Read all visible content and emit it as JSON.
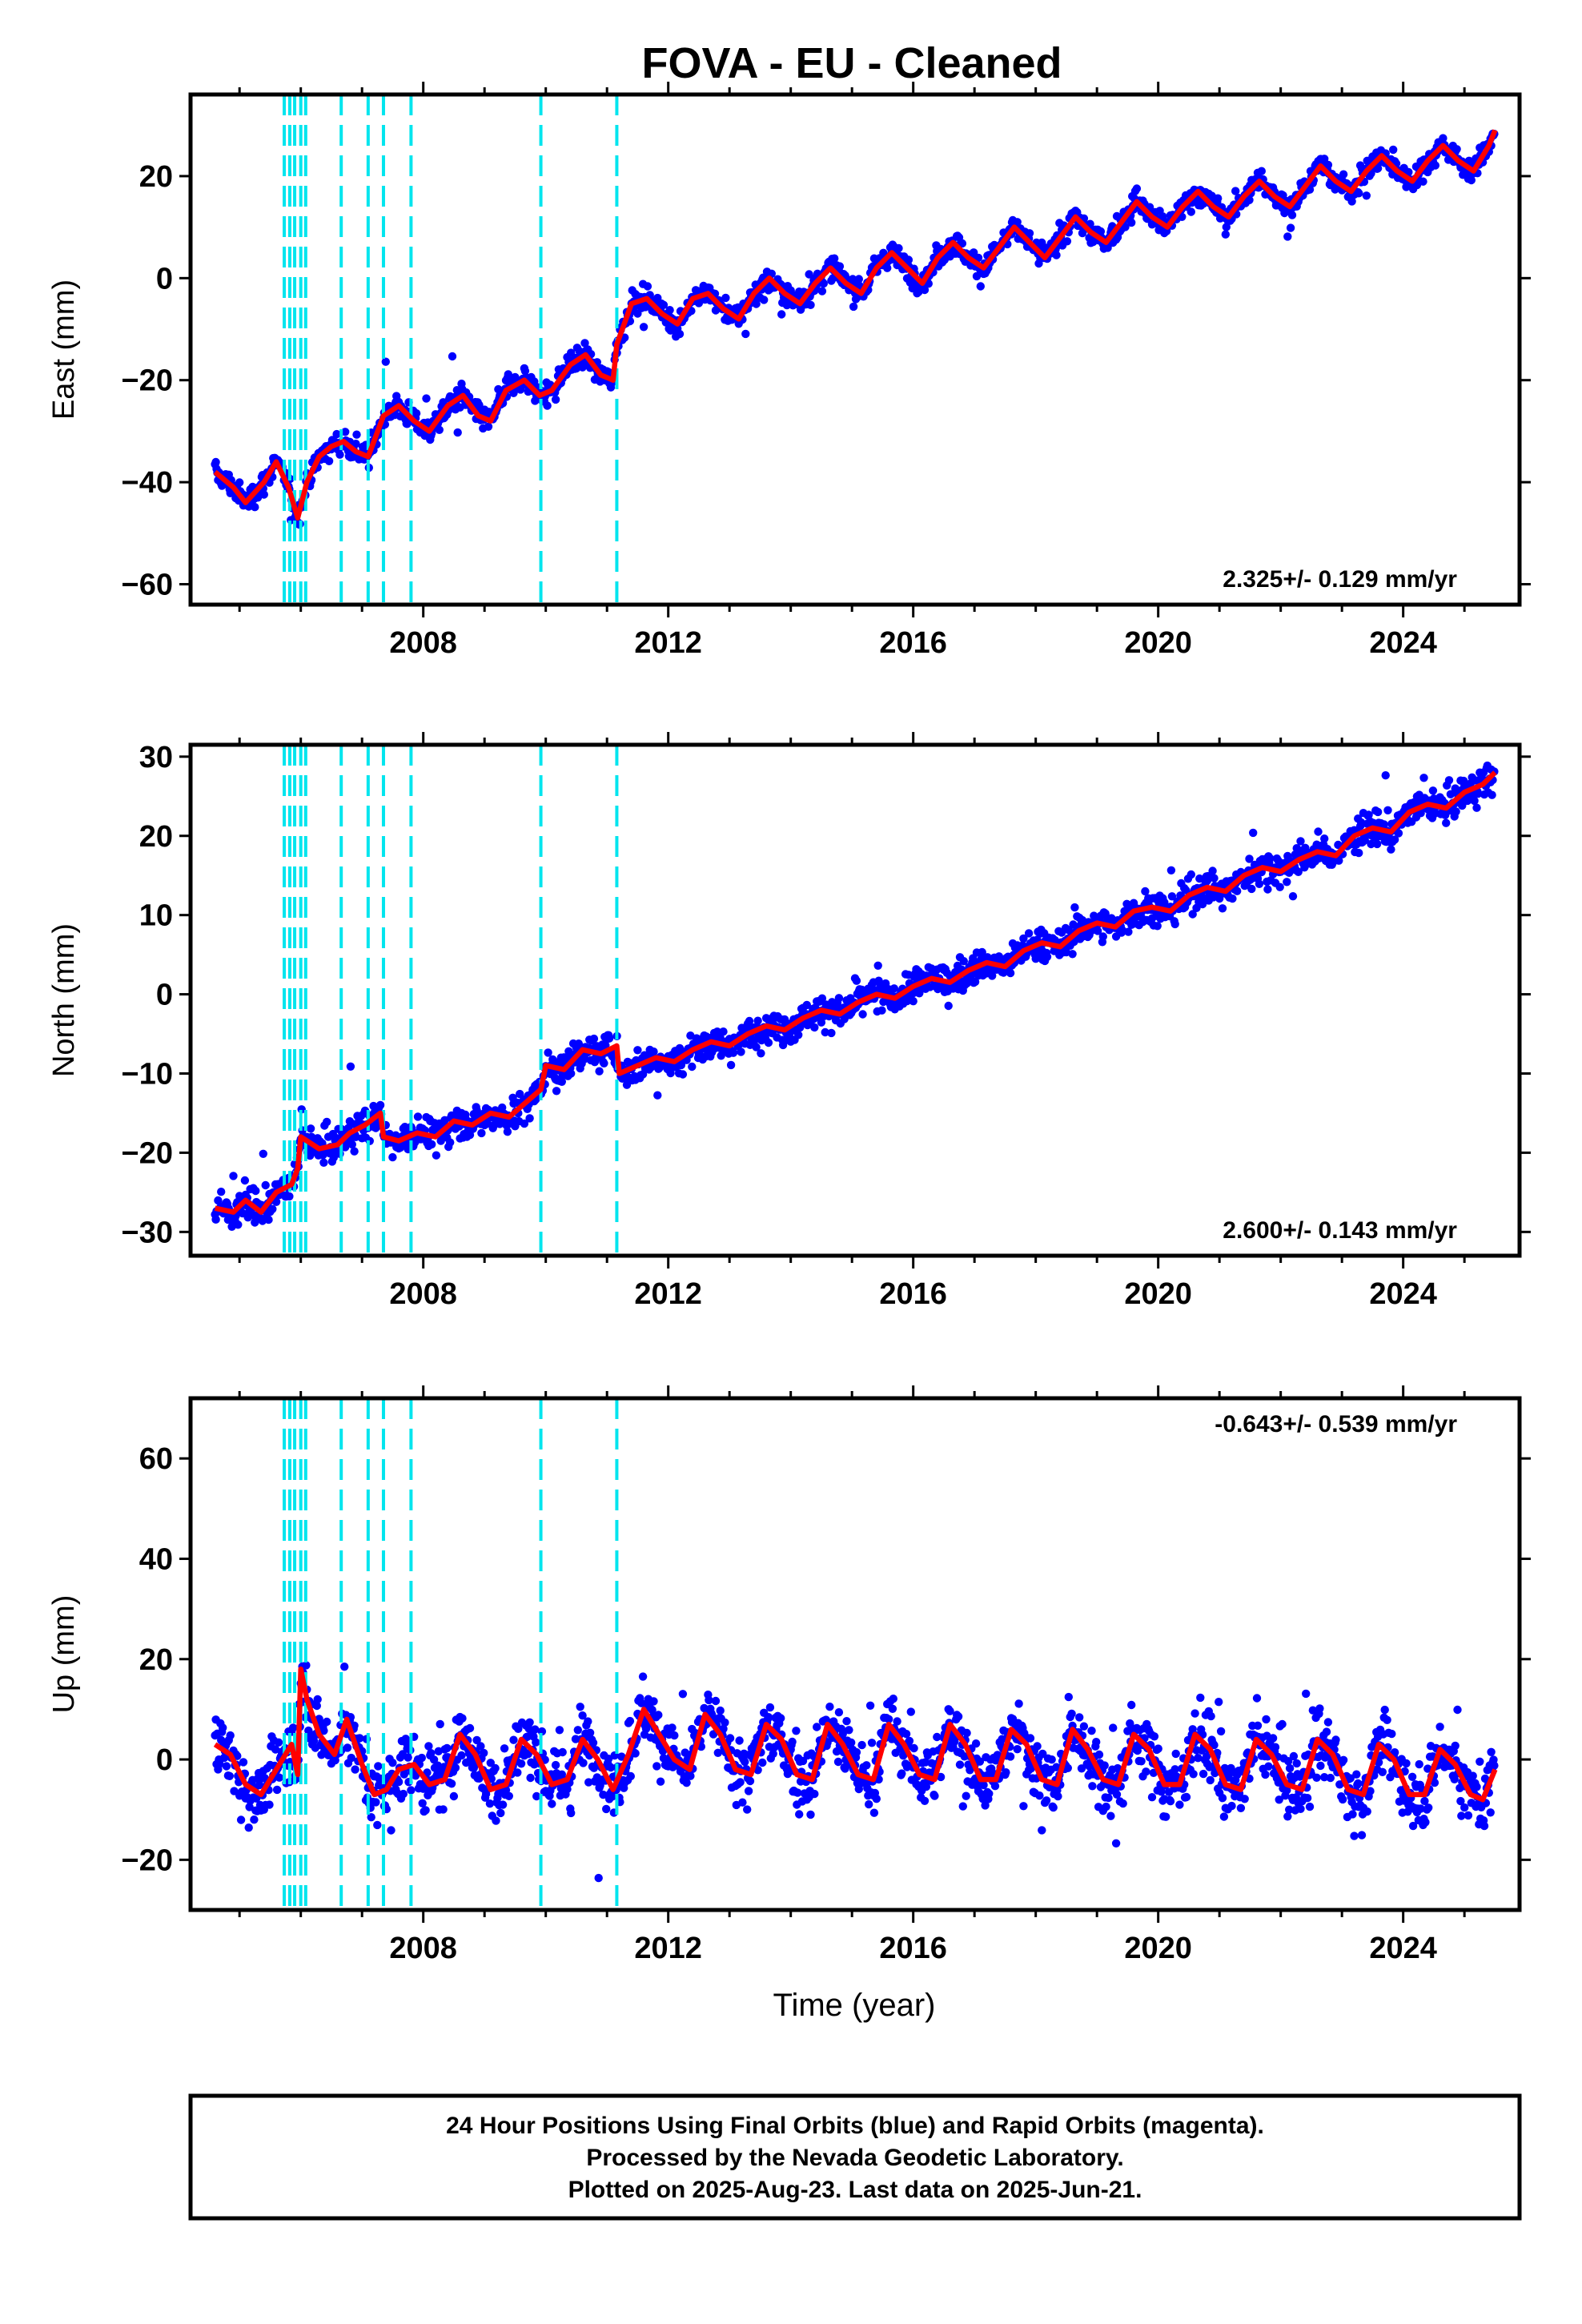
{
  "title": "FOVA  - EU - Cleaned",
  "xlabel": "Time (year)",
  "footer": {
    "line1": "24 Hour Positions Using Final Orbits (blue) and Rapid Orbits (magenta).",
    "line2": "Processed by the Nevada Geodetic Laboratory.",
    "line3": "Plotted on 2025-Aug-23. Last data on 2025-Jun-21."
  },
  "colors": {
    "data": "#0000ff",
    "model": "#ff0000",
    "offsets": "#00e5ee",
    "frame": "#000000"
  },
  "chart_data": [
    {
      "type": "scatter",
      "component": "east",
      "ylabel": "East (mm)",
      "rate_text": "2.325+/- 0.129 mm/yr",
      "xlim": [
        2004.2,
        2025.9
      ],
      "ylim": [
        -64,
        36
      ],
      "xticks": [
        2008,
        2012,
        2016,
        2020,
        2024
      ],
      "yticks": [
        -60,
        -40,
        -20,
        0,
        20
      ],
      "offset_lines": [
        2005.73,
        2005.82,
        2005.9,
        2006.0,
        2006.08,
        2006.66,
        2007.1,
        2007.35,
        2007.8,
        2009.92,
        2011.16
      ],
      "model_fit": [
        [
          2004.6,
          -38
        ],
        [
          2004.9,
          -41
        ],
        [
          2005.1,
          -44
        ],
        [
          2005.4,
          -40
        ],
        [
          2005.6,
          -36
        ],
        [
          2005.8,
          -41
        ],
        [
          2005.95,
          -47
        ],
        [
          2006.1,
          -40
        ],
        [
          2006.3,
          -35
        ],
        [
          2006.5,
          -33
        ],
        [
          2006.7,
          -32
        ],
        [
          2006.9,
          -34
        ],
        [
          2007.1,
          -35
        ],
        [
          2007.35,
          -27
        ],
        [
          2007.6,
          -25
        ],
        [
          2007.85,
          -28
        ],
        [
          2008.1,
          -30
        ],
        [
          2008.4,
          -25
        ],
        [
          2008.65,
          -23
        ],
        [
          2008.9,
          -27
        ],
        [
          2009.1,
          -28
        ],
        [
          2009.35,
          -22
        ],
        [
          2009.65,
          -20
        ],
        [
          2009.9,
          -23
        ],
        [
          2010.1,
          -22
        ],
        [
          2010.4,
          -17
        ],
        [
          2010.65,
          -15
        ],
        [
          2010.9,
          -19
        ],
        [
          2011.1,
          -20
        ],
        [
          2011.16,
          -13
        ],
        [
          2011.4,
          -5
        ],
        [
          2011.65,
          -4
        ],
        [
          2011.9,
          -7
        ],
        [
          2012.15,
          -9
        ],
        [
          2012.4,
          -4
        ],
        [
          2012.65,
          -3
        ],
        [
          2012.9,
          -6
        ],
        [
          2013.15,
          -8
        ],
        [
          2013.4,
          -3
        ],
        [
          2013.65,
          0
        ],
        [
          2013.9,
          -3
        ],
        [
          2014.15,
          -5
        ],
        [
          2014.4,
          -1
        ],
        [
          2014.65,
          2
        ],
        [
          2014.9,
          -1
        ],
        [
          2015.15,
          -3
        ],
        [
          2015.4,
          2
        ],
        [
          2015.65,
          5
        ],
        [
          2015.9,
          2
        ],
        [
          2016.15,
          -1
        ],
        [
          2016.4,
          4
        ],
        [
          2016.65,
          7
        ],
        [
          2016.9,
          4
        ],
        [
          2017.15,
          2
        ],
        [
          2017.4,
          6
        ],
        [
          2017.65,
          10
        ],
        [
          2017.9,
          7
        ],
        [
          2018.15,
          4
        ],
        [
          2018.4,
          8
        ],
        [
          2018.65,
          12
        ],
        [
          2018.9,
          9
        ],
        [
          2019.15,
          7
        ],
        [
          2019.4,
          11
        ],
        [
          2019.65,
          15
        ],
        [
          2019.9,
          12
        ],
        [
          2020.15,
          10
        ],
        [
          2020.4,
          14
        ],
        [
          2020.65,
          17
        ],
        [
          2020.9,
          14
        ],
        [
          2021.15,
          12
        ],
        [
          2021.4,
          16
        ],
        [
          2021.65,
          19
        ],
        [
          2021.9,
          16
        ],
        [
          2022.15,
          14
        ],
        [
          2022.4,
          18
        ],
        [
          2022.65,
          22
        ],
        [
          2022.9,
          19
        ],
        [
          2023.15,
          17
        ],
        [
          2023.4,
          21
        ],
        [
          2023.65,
          24
        ],
        [
          2023.9,
          21
        ],
        [
          2024.15,
          19
        ],
        [
          2024.4,
          23
        ],
        [
          2024.65,
          26
        ],
        [
          2024.9,
          23
        ],
        [
          2025.15,
          21
        ],
        [
          2025.4,
          26
        ],
        [
          2025.5,
          29
        ]
      ]
    },
    {
      "type": "scatter",
      "component": "north",
      "ylabel": "North (mm)",
      "rate_text": "2.600+/- 0.143 mm/yr",
      "xlim": [
        2004.2,
        2025.9
      ],
      "ylim": [
        -33,
        31.5
      ],
      "xticks": [
        2008,
        2012,
        2016,
        2020,
        2024
      ],
      "yticks": [
        -30,
        -20,
        -10,
        0,
        10,
        20,
        30
      ],
      "offset_lines": [
        2005.73,
        2005.82,
        2005.9,
        2006.0,
        2006.08,
        2006.66,
        2007.1,
        2007.35,
        2007.8,
        2009.92,
        2011.16
      ],
      "model_fit": [
        [
          2004.6,
          -27
        ],
        [
          2004.9,
          -27.5
        ],
        [
          2005.1,
          -26
        ],
        [
          2005.35,
          -27.5
        ],
        [
          2005.6,
          -25
        ],
        [
          2005.85,
          -24
        ],
        [
          2005.95,
          -22
        ],
        [
          2006.0,
          -18
        ],
        [
          2006.3,
          -19.5
        ],
        [
          2006.6,
          -19
        ],
        [
          2006.8,
          -17.5
        ],
        [
          2007.05,
          -16.5
        ],
        [
          2007.3,
          -15
        ],
        [
          2007.35,
          -18
        ],
        [
          2007.6,
          -18.5
        ],
        [
          2007.9,
          -17.5
        ],
        [
          2008.2,
          -18
        ],
        [
          2008.5,
          -16
        ],
        [
          2008.8,
          -16.5
        ],
        [
          2009.1,
          -15
        ],
        [
          2009.4,
          -15.5
        ],
        [
          2009.7,
          -13.5
        ],
        [
          2009.92,
          -12
        ],
        [
          2010.0,
          -9
        ],
        [
          2010.3,
          -9.5
        ],
        [
          2010.6,
          -7
        ],
        [
          2010.9,
          -7.5
        ],
        [
          2011.16,
          -6.5
        ],
        [
          2011.2,
          -10
        ],
        [
          2011.5,
          -9
        ],
        [
          2011.8,
          -8
        ],
        [
          2012.1,
          -8.5
        ],
        [
          2012.4,
          -7
        ],
        [
          2012.7,
          -6
        ],
        [
          2013.0,
          -6.5
        ],
        [
          2013.3,
          -5
        ],
        [
          2013.6,
          -4
        ],
        [
          2013.9,
          -4.5
        ],
        [
          2014.2,
          -3
        ],
        [
          2014.5,
          -2
        ],
        [
          2014.8,
          -2.5
        ],
        [
          2015.1,
          -1
        ],
        [
          2015.4,
          0
        ],
        [
          2015.7,
          -0.5
        ],
        [
          2016.0,
          1
        ],
        [
          2016.3,
          2
        ],
        [
          2016.6,
          1.5
        ],
        [
          2016.9,
          3
        ],
        [
          2017.2,
          4
        ],
        [
          2017.5,
          3.5
        ],
        [
          2017.8,
          5.5
        ],
        [
          2018.1,
          6.5
        ],
        [
          2018.4,
          6
        ],
        [
          2018.7,
          8
        ],
        [
          2019.0,
          9
        ],
        [
          2019.3,
          8.5
        ],
        [
          2019.6,
          10.5
        ],
        [
          2019.9,
          11
        ],
        [
          2020.2,
          10.5
        ],
        [
          2020.5,
          12.5
        ],
        [
          2020.8,
          13.5
        ],
        [
          2021.1,
          13
        ],
        [
          2021.4,
          15
        ],
        [
          2021.7,
          16
        ],
        [
          2022.0,
          15.5
        ],
        [
          2022.3,
          17
        ],
        [
          2022.6,
          18
        ],
        [
          2022.9,
          17.5
        ],
        [
          2023.2,
          20
        ],
        [
          2023.5,
          21
        ],
        [
          2023.8,
          20.5
        ],
        [
          2024.1,
          23
        ],
        [
          2024.4,
          24
        ],
        [
          2024.7,
          23.5
        ],
        [
          2025.0,
          25.5
        ],
        [
          2025.3,
          26.5
        ],
        [
          2025.5,
          28
        ]
      ]
    },
    {
      "type": "scatter",
      "component": "up",
      "ylabel": "Up (mm)",
      "rate_text": "-0.643+/- 0.539 mm/yr",
      "xlim": [
        2004.2,
        2025.9
      ],
      "ylim": [
        -30,
        72
      ],
      "xticks": [
        2008,
        2012,
        2016,
        2020,
        2024
      ],
      "yticks": [
        -20,
        0,
        20,
        40,
        60
      ],
      "offset_lines": [
        2005.73,
        2005.82,
        2005.9,
        2006.0,
        2006.08,
        2006.66,
        2007.1,
        2007.35,
        2007.8,
        2009.92,
        2011.16
      ],
      "model_fit": [
        [
          2004.6,
          3
        ],
        [
          2004.85,
          1
        ],
        [
          2005.1,
          -5
        ],
        [
          2005.35,
          -7
        ],
        [
          2005.6,
          -2
        ],
        [
          2005.85,
          3
        ],
        [
          2005.95,
          -3
        ],
        [
          2006.0,
          18
        ],
        [
          2006.1,
          12
        ],
        [
          2006.3,
          5
        ],
        [
          2006.55,
          1
        ],
        [
          2006.75,
          8
        ],
        [
          2007.0,
          -1
        ],
        [
          2007.2,
          -7
        ],
        [
          2007.4,
          -6
        ],
        [
          2007.6,
          -2
        ],
        [
          2007.85,
          -1
        ],
        [
          2008.1,
          -5
        ],
        [
          2008.35,
          -4
        ],
        [
          2008.6,
          5
        ],
        [
          2008.85,
          1
        ],
        [
          2009.1,
          -6
        ],
        [
          2009.35,
          -5
        ],
        [
          2009.6,
          4
        ],
        [
          2009.85,
          1
        ],
        [
          2010.1,
          -5
        ],
        [
          2010.35,
          -4
        ],
        [
          2010.6,
          4
        ],
        [
          2010.85,
          0
        ],
        [
          2011.1,
          -6
        ],
        [
          2011.35,
          1
        ],
        [
          2011.6,
          10
        ],
        [
          2011.85,
          5
        ],
        [
          2012.1,
          0
        ],
        [
          2012.35,
          -2
        ],
        [
          2012.6,
          9
        ],
        [
          2012.85,
          5
        ],
        [
          2013.1,
          -2
        ],
        [
          2013.35,
          -3
        ],
        [
          2013.6,
          7
        ],
        [
          2013.85,
          4
        ],
        [
          2014.1,
          -3
        ],
        [
          2014.35,
          -4
        ],
        [
          2014.6,
          7
        ],
        [
          2014.85,
          3
        ],
        [
          2015.1,
          -3
        ],
        [
          2015.35,
          -4
        ],
        [
          2015.6,
          7
        ],
        [
          2015.85,
          3
        ],
        [
          2016.1,
          -3
        ],
        [
          2016.35,
          -4
        ],
        [
          2016.6,
          7
        ],
        [
          2016.85,
          3
        ],
        [
          2017.1,
          -4
        ],
        [
          2017.35,
          -4
        ],
        [
          2017.6,
          6
        ],
        [
          2017.85,
          3
        ],
        [
          2018.1,
          -4
        ],
        [
          2018.35,
          -5
        ],
        [
          2018.6,
          6
        ],
        [
          2018.85,
          2
        ],
        [
          2019.1,
          -4
        ],
        [
          2019.35,
          -5
        ],
        [
          2019.6,
          5
        ],
        [
          2019.85,
          2
        ],
        [
          2020.1,
          -5
        ],
        [
          2020.35,
          -5
        ],
        [
          2020.6,
          5
        ],
        [
          2020.85,
          2
        ],
        [
          2021.1,
          -5
        ],
        [
          2021.35,
          -6
        ],
        [
          2021.6,
          4
        ],
        [
          2021.85,
          1
        ],
        [
          2022.1,
          -5
        ],
        [
          2022.35,
          -6
        ],
        [
          2022.6,
          4
        ],
        [
          2022.85,
          1
        ],
        [
          2023.1,
          -6
        ],
        [
          2023.35,
          -7
        ],
        [
          2023.6,
          3
        ],
        [
          2023.85,
          0
        ],
        [
          2024.1,
          -7
        ],
        [
          2024.35,
          -7
        ],
        [
          2024.6,
          2
        ],
        [
          2024.85,
          -1
        ],
        [
          2025.1,
          -7
        ],
        [
          2025.3,
          -8
        ],
        [
          2025.5,
          -2
        ]
      ]
    }
  ]
}
